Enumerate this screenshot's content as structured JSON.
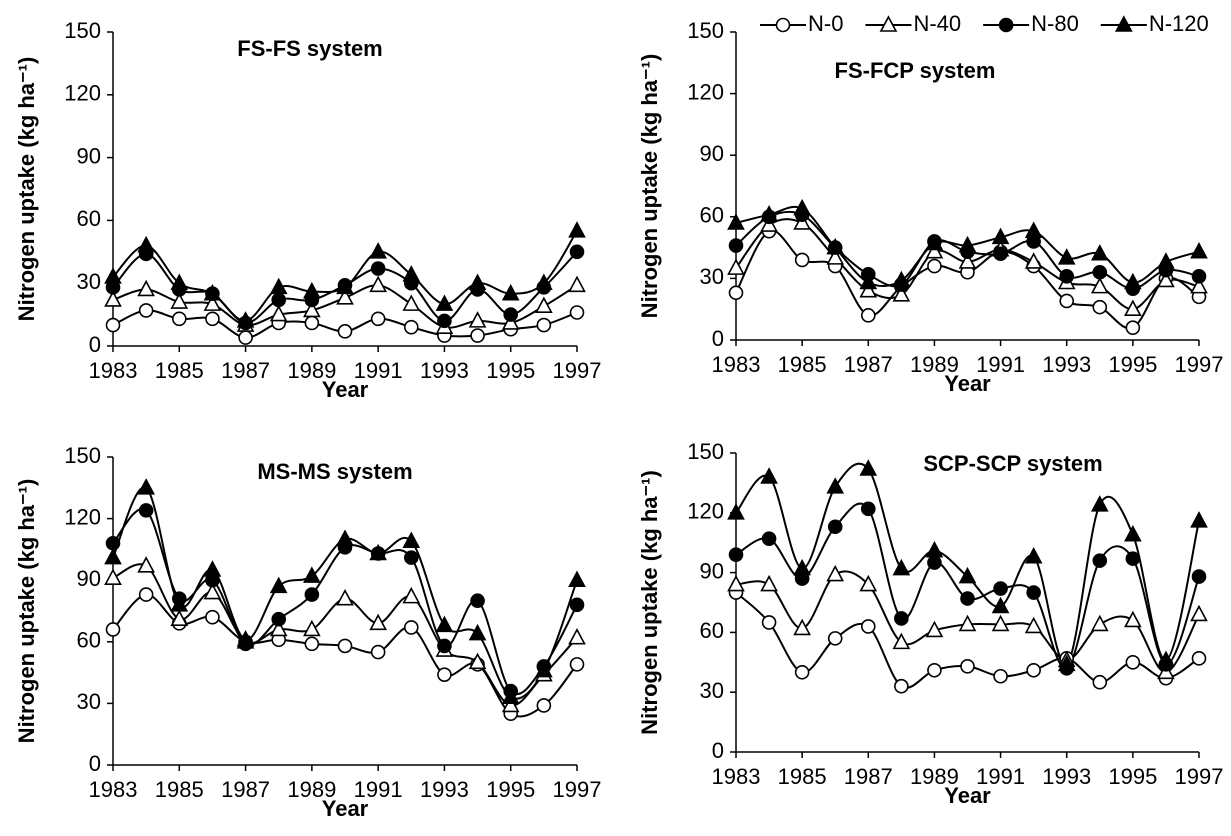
{
  "chart_data": [
    {
      "type": "line",
      "title": "FS-FS system",
      "xlabel": "Year",
      "ylabel": "Nitrogen uptake (kg ha⁻¹)",
      "x": [
        1983,
        1984,
        1985,
        1986,
        1987,
        1988,
        1989,
        1990,
        1991,
        1992,
        1993,
        1994,
        1995,
        1996,
        1997
      ],
      "xlim": [
        1983,
        1997
      ],
      "xticks": [
        1983,
        1985,
        1987,
        1989,
        1991,
        1993,
        1995,
        1997
      ],
      "ylim": [
        0,
        150
      ],
      "yticks": [
        0,
        30,
        60,
        90,
        120,
        150
      ],
      "series": [
        {
          "marker": "open-circle",
          "color": "#000000",
          "values": [
            10,
            17,
            13,
            13,
            4,
            11,
            11,
            7,
            13,
            9,
            5,
            5,
            8,
            10,
            16
          ]
        },
        {
          "marker": "open-triangle",
          "color": "#000000",
          "values": [
            22,
            27,
            21,
            20,
            10,
            15,
            17,
            23,
            29,
            20,
            9,
            12,
            11,
            19,
            29
          ]
        },
        {
          "marker": "filled-circle",
          "color": "#000000",
          "values": [
            28,
            44,
            27,
            25,
            11,
            22,
            22,
            29,
            37,
            30,
            12,
            27,
            15,
            28,
            45
          ]
        },
        {
          "marker": "filled-triangle",
          "color": "#000000",
          "values": [
            33,
            48,
            30,
            25,
            12,
            28,
            26,
            28,
            45,
            34,
            20,
            30,
            25,
            30,
            55
          ]
        }
      ]
    },
    {
      "type": "line",
      "title": "FS-FCP system",
      "xlabel": "Year",
      "ylabel": "Nitrogen uptake (kg ha⁻¹)",
      "legend": "top",
      "x": [
        1983,
        1984,
        1985,
        1986,
        1987,
        1988,
        1989,
        1990,
        1991,
        1992,
        1993,
        1994,
        1995,
        1996,
        1997
      ],
      "xlim": [
        1983,
        1997
      ],
      "xticks": [
        1983,
        1985,
        1987,
        1989,
        1991,
        1993,
        1995,
        1997
      ],
      "ylim": [
        0,
        150
      ],
      "yticks": [
        0,
        30,
        60,
        90,
        120,
        150
      ],
      "series": [
        {
          "name": "N-0",
          "marker": "open-circle",
          "color": "#000000",
          "values": [
            23,
            53,
            39,
            36,
            12,
            26,
            36,
            33,
            43,
            36,
            19,
            16,
            6,
            30,
            21
          ]
        },
        {
          "name": "N-40",
          "marker": "open-triangle",
          "color": "#000000",
          "values": [
            35,
            56,
            57,
            40,
            24,
            22,
            43,
            38,
            44,
            38,
            28,
            26,
            15,
            29,
            26
          ]
        },
        {
          "name": "N-80",
          "marker": "filled-circle",
          "color": "#000000",
          "values": [
            46,
            60,
            61,
            45,
            32,
            27,
            48,
            43,
            42,
            48,
            31,
            33,
            25,
            34,
            31
          ]
        },
        {
          "name": "N-120",
          "marker": "filled-triangle",
          "color": "#000000",
          "values": [
            57,
            61,
            64,
            45,
            28,
            29,
            47,
            46,
            50,
            53,
            40,
            42,
            28,
            38,
            43
          ]
        }
      ]
    },
    {
      "type": "line",
      "title": "MS-MS system",
      "xlabel": "Year",
      "ylabel": "Nitrogen uptake (kg ha⁻¹)",
      "x": [
        1983,
        1984,
        1985,
        1986,
        1987,
        1988,
        1989,
        1990,
        1991,
        1992,
        1993,
        1994,
        1995,
        1996,
        1997
      ],
      "xlim": [
        1983,
        1997
      ],
      "xticks": [
        1983,
        1985,
        1987,
        1989,
        1991,
        1993,
        1995,
        1997
      ],
      "ylim": [
        0,
        150
      ],
      "yticks": [
        0,
        30,
        60,
        90,
        120,
        150
      ],
      "series": [
        {
          "marker": "open-circle",
          "color": "#000000",
          "values": [
            66,
            83,
            69,
            72,
            60,
            61,
            59,
            58,
            55,
            67,
            44,
            49,
            25,
            29,
            49
          ]
        },
        {
          "marker": "open-triangle",
          "color": "#000000",
          "values": [
            91,
            97,
            71,
            84,
            60,
            66,
            66,
            81,
            69,
            82,
            56,
            50,
            29,
            44,
            62
          ]
        },
        {
          "marker": "filled-circle",
          "color": "#000000",
          "values": [
            108,
            124,
            81,
            90,
            59,
            71,
            83,
            106,
            103,
            101,
            58,
            80,
            36,
            48,
            78
          ]
        },
        {
          "marker": "filled-triangle",
          "color": "#000000",
          "values": [
            101,
            135,
            78,
            95,
            61,
            87,
            92,
            110,
            103,
            109,
            68,
            64,
            33,
            46,
            90
          ]
        }
      ]
    },
    {
      "type": "line",
      "title": "SCP-SCP system",
      "xlabel": "Year",
      "ylabel": "Nitrogen uptake (kg ha⁻¹)",
      "x": [
        1983,
        1984,
        1985,
        1986,
        1987,
        1988,
        1989,
        1990,
        1991,
        1992,
        1993,
        1994,
        1995,
        1996,
        1997
      ],
      "xlim": [
        1983,
        1997
      ],
      "xticks": [
        1983,
        1985,
        1987,
        1989,
        1991,
        1993,
        1995,
        1997
      ],
      "ylim": [
        0,
        150
      ],
      "yticks": [
        0,
        30,
        60,
        90,
        120,
        150
      ],
      "series": [
        {
          "marker": "open-circle",
          "color": "#000000",
          "values": [
            80,
            65,
            40,
            57,
            63,
            33,
            41,
            43,
            38,
            41,
            47,
            35,
            45,
            37,
            47
          ]
        },
        {
          "marker": "open-triangle",
          "color": "#000000",
          "values": [
            84,
            84,
            62,
            89,
            84,
            55,
            61,
            64,
            64,
            63,
            46,
            64,
            66,
            40,
            69
          ]
        },
        {
          "marker": "filled-circle",
          "color": "#000000",
          "values": [
            99,
            107,
            87,
            113,
            122,
            67,
            95,
            77,
            82,
            80,
            42,
            96,
            97,
            44,
            88
          ]
        },
        {
          "marker": "filled-triangle",
          "color": "#000000",
          "values": [
            120,
            138,
            92,
            133,
            142,
            92,
            101,
            88,
            73,
            98,
            44,
            124,
            109,
            46,
            116
          ]
        }
      ]
    }
  ]
}
